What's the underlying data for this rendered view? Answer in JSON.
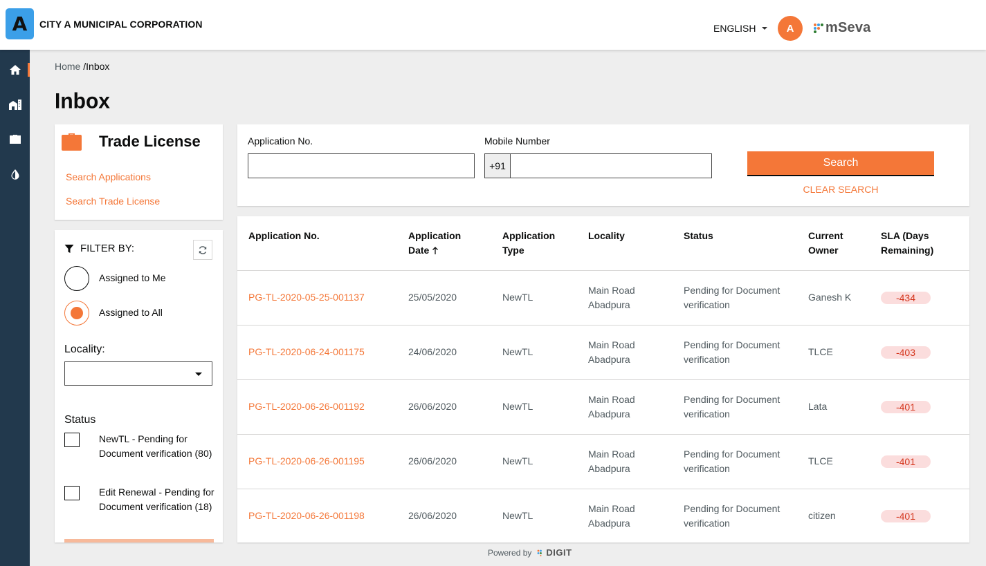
{
  "header": {
    "logo_letter": "A",
    "city_name": "CITY A MUNICIPAL CORPORATION",
    "language": "ENGLISH",
    "avatar_initial": "A",
    "brand": "mSeva"
  },
  "sidebar": {
    "items": [
      {
        "icon": "home-icon",
        "active": true
      },
      {
        "icon": "city-building-icon",
        "active": false
      },
      {
        "icon": "briefcase-icon",
        "active": false
      },
      {
        "icon": "water-drop-icon",
        "active": false
      }
    ]
  },
  "breadcrumb": {
    "home": "Home",
    "separator": " /",
    "current": "Inbox"
  },
  "page_title": "Inbox",
  "module_card": {
    "title": "Trade License",
    "links": [
      "Search Applications",
      "Search Trade License"
    ]
  },
  "filter": {
    "heading": "FILTER BY:",
    "assignment_options": [
      {
        "label": "Assigned to Me",
        "selected": false
      },
      {
        "label": "Assigned to All",
        "selected": true
      }
    ],
    "locality_label": "Locality:",
    "locality_value": "",
    "status_label": "Status",
    "status_options": [
      {
        "label": "NewTL - Pending for Document verification (80)",
        "checked": false
      },
      {
        "label": "Edit Renewal - Pending for Document verification (18)",
        "checked": false
      }
    ]
  },
  "search": {
    "application_no_label": "Application No.",
    "application_no_value": "",
    "mobile_label": "Mobile Number",
    "mobile_prefix": "+91",
    "mobile_value": "",
    "search_button": "Search",
    "clear_button": "CLEAR SEARCH"
  },
  "table": {
    "headers": {
      "application_no": "Application No.",
      "application_date_1": "Application",
      "application_date_2": "Date",
      "application_type_1": "Application",
      "application_type_2": "Type",
      "locality": "Locality",
      "status": "Status",
      "owner_1": "Current",
      "owner_2": "Owner",
      "sla_1": "SLA (Days",
      "sla_2": "Remaining)"
    },
    "rows": [
      {
        "app_no": "PG-TL-2020-05-25-001137",
        "date": "25/05/2020",
        "type": "NewTL",
        "locality_1": "Main Road",
        "locality_2": "Abadpura",
        "status_1": "Pending for Document",
        "status_2": "verification",
        "owner": "Ganesh K",
        "sla": "-434"
      },
      {
        "app_no": "PG-TL-2020-06-24-001175",
        "date": "24/06/2020",
        "type": "NewTL",
        "locality_1": "Main Road",
        "locality_2": "Abadpura",
        "status_1": "Pending for Document",
        "status_2": "verification",
        "owner": "TLCE",
        "sla": "-403"
      },
      {
        "app_no": "PG-TL-2020-06-26-001192",
        "date": "26/06/2020",
        "type": "NewTL",
        "locality_1": "Main Road",
        "locality_2": "Abadpura",
        "status_1": "Pending for Document",
        "status_2": "verification",
        "owner": "Lata",
        "sla": "-401"
      },
      {
        "app_no": "PG-TL-2020-06-26-001195",
        "date": "26/06/2020",
        "type": "NewTL",
        "locality_1": "Main Road",
        "locality_2": "Abadpura",
        "status_1": "Pending for Document",
        "status_2": "verification",
        "owner": "TLCE",
        "sla": "-401"
      },
      {
        "app_no": "PG-TL-2020-06-26-001198",
        "date": "26/06/2020",
        "type": "NewTL",
        "locality_1": "Main Road",
        "locality_2": "Abadpura",
        "status_1": "Pending for Document",
        "status_2": "verification",
        "owner": "citizen",
        "sla": "-401"
      }
    ]
  },
  "footer": {
    "powered_by": "Powered by",
    "brand": "DIGIT"
  },
  "colors": {
    "accent": "#f47738",
    "sidebar": "#22394d",
    "sla_bg": "#fbdddd",
    "sla_text": "#d4351c"
  }
}
